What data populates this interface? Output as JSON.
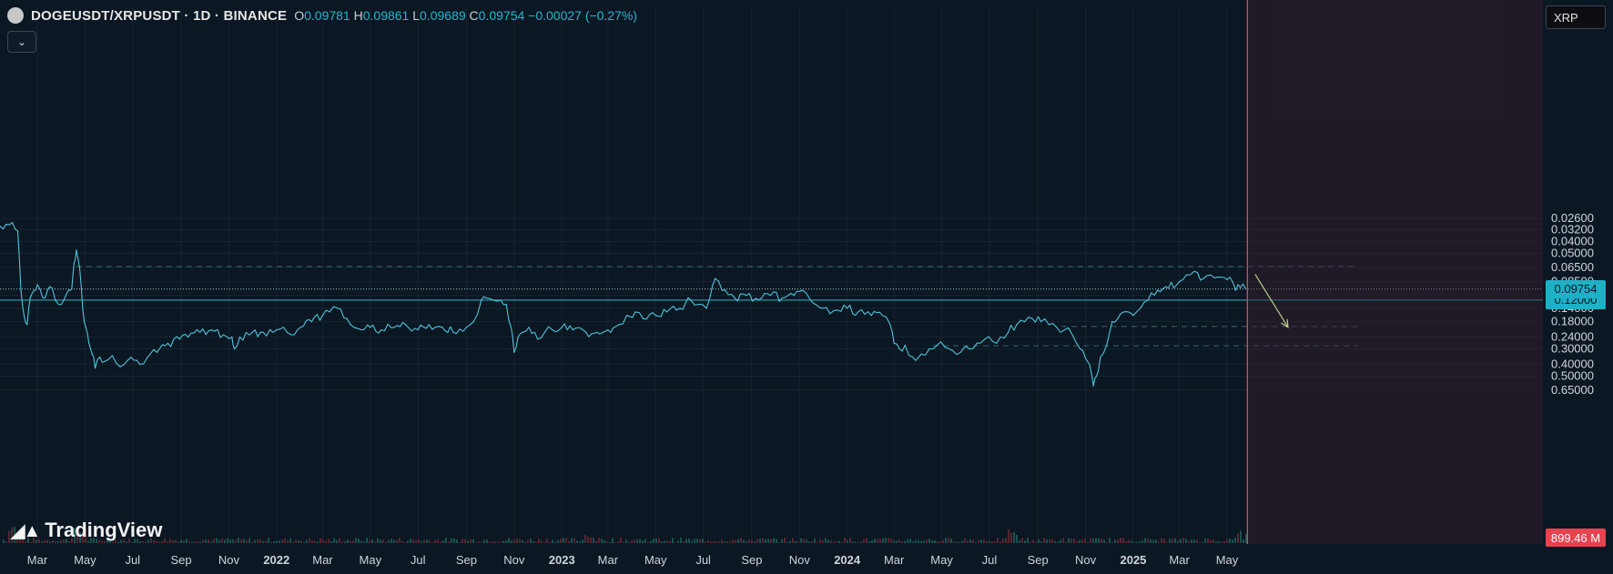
{
  "header": {
    "symbol": "DOGEUSDT/XRPUSDT · 1D · BINANCE",
    "o_label": "O",
    "o_value": "0.09781",
    "h_label": "H",
    "h_value": "0.09861",
    "l_label": "L",
    "l_value": "0.09689",
    "c_label": "C",
    "c_value": "0.09754",
    "change": "−0.00027 (−0.27%)",
    "toggle_icon": "chevron-down-icon"
  },
  "axis_button": "XRP",
  "brand": "TradingView",
  "tags": {
    "level": "0.12000",
    "last": "0.09754",
    "volume": "899.46 M"
  },
  "colors": {
    "background": "#0b1722",
    "price_line": "#4fc3dc",
    "zone_fill": "#1a7f8e",
    "projection": "#b9cf8a",
    "cursor_line": "#e05061",
    "volume_tag": "#e8424f",
    "tag_fill": "#1fb0c7"
  },
  "chart_data": {
    "type": "line",
    "ylabel": "",
    "y_scale": "log",
    "ylim": [
      0.022,
      0.72
    ],
    "y_ticks": [
      {
        "value": 0.65,
        "label": "0.65000"
      },
      {
        "value": 0.5,
        "label": "0.50000"
      },
      {
        "value": 0.4,
        "label": "0.40000"
      },
      {
        "value": 0.3,
        "label": "0.30000"
      },
      {
        "value": 0.24,
        "label": "0.24000"
      },
      {
        "value": 0.18,
        "label": "0.18000"
      },
      {
        "value": 0.14,
        "label": "0.14000"
      },
      {
        "value": 0.11,
        "label": "0.11000"
      },
      {
        "value": 0.085,
        "label": "0.08500"
      },
      {
        "value": 0.065,
        "label": "0.06500"
      },
      {
        "value": 0.05,
        "label": "0.05000"
      },
      {
        "value": 0.04,
        "label": "0.04000"
      },
      {
        "value": 0.032,
        "label": "0.03200"
      },
      {
        "value": 0.026,
        "label": "0.02600"
      }
    ],
    "x_ticks": [
      {
        "date": "2021-03-01",
        "label": "Mar",
        "bold": false
      },
      {
        "date": "2021-05-01",
        "label": "May",
        "bold": false
      },
      {
        "date": "2021-07-01",
        "label": "Jul",
        "bold": false
      },
      {
        "date": "2021-09-01",
        "label": "Sep",
        "bold": false
      },
      {
        "date": "2021-11-01",
        "label": "Nov",
        "bold": false
      },
      {
        "date": "2022-01-01",
        "label": "2022",
        "bold": true
      },
      {
        "date": "2022-03-01",
        "label": "Mar",
        "bold": false
      },
      {
        "date": "2022-05-01",
        "label": "May",
        "bold": false
      },
      {
        "date": "2022-07-01",
        "label": "Jul",
        "bold": false
      },
      {
        "date": "2022-09-01",
        "label": "Sep",
        "bold": false
      },
      {
        "date": "2022-11-01",
        "label": "Nov",
        "bold": false
      },
      {
        "date": "2023-01-01",
        "label": "2023",
        "bold": true
      },
      {
        "date": "2023-03-01",
        "label": "Mar",
        "bold": false
      },
      {
        "date": "2023-05-01",
        "label": "May",
        "bold": false
      },
      {
        "date": "2023-07-01",
        "label": "Jul",
        "bold": false
      },
      {
        "date": "2023-09-01",
        "label": "Sep",
        "bold": false
      },
      {
        "date": "2023-11-01",
        "label": "Nov",
        "bold": false
      },
      {
        "date": "2024-01-01",
        "label": "2024",
        "bold": true
      },
      {
        "date": "2024-03-01",
        "label": "Mar",
        "bold": false
      },
      {
        "date": "2024-05-01",
        "label": "May",
        "bold": false
      },
      {
        "date": "2024-07-01",
        "label": "Jul",
        "bold": false
      },
      {
        "date": "2024-09-01",
        "label": "Sep",
        "bold": false
      },
      {
        "date": "2024-11-01",
        "label": "Nov",
        "bold": false
      },
      {
        "date": "2025-01-01",
        "label": "2025",
        "bold": true
      },
      {
        "date": "2025-03-01",
        "label": "Mar",
        "bold": false
      },
      {
        "date": "2025-05-01",
        "label": "May",
        "bold": false
      }
    ],
    "series": [
      {
        "points": [
          [
            "2021-01-05",
            0.034
          ],
          [
            "2021-01-20",
            0.029
          ],
          [
            "2021-01-28",
            0.028
          ],
          [
            "2021-02-04",
            0.033
          ],
          [
            "2021-02-08",
            0.1
          ],
          [
            "2021-02-12",
            0.16
          ],
          [
            "2021-02-16",
            0.19
          ],
          [
            "2021-02-20",
            0.115
          ],
          [
            "2021-02-25",
            0.1
          ],
          [
            "2021-03-01",
            0.09
          ],
          [
            "2021-03-08",
            0.115
          ],
          [
            "2021-03-14",
            0.1
          ],
          [
            "2021-03-20",
            0.096
          ],
          [
            "2021-03-28",
            0.13
          ],
          [
            "2021-04-04",
            0.12
          ],
          [
            "2021-04-10",
            0.1
          ],
          [
            "2021-04-14",
            0.098
          ],
          [
            "2021-04-17",
            0.06
          ],
          [
            "2021-04-20",
            0.047
          ],
          [
            "2021-04-24",
            0.065
          ],
          [
            "2021-04-28",
            0.14
          ],
          [
            "2021-05-02",
            0.2
          ],
          [
            "2021-05-06",
            0.27
          ],
          [
            "2021-05-10",
            0.33
          ],
          [
            "2021-05-14",
            0.43
          ],
          [
            "2021-05-20",
            0.35
          ],
          [
            "2021-05-26",
            0.38
          ],
          [
            "2021-06-05",
            0.34
          ],
          [
            "2021-06-15",
            0.42
          ],
          [
            "2021-06-25",
            0.37
          ],
          [
            "2021-07-10",
            0.4
          ],
          [
            "2021-07-20",
            0.35
          ],
          [
            "2021-08-01",
            0.32
          ],
          [
            "2021-08-15",
            0.27
          ],
          [
            "2021-08-30",
            0.25
          ],
          [
            "2021-09-10",
            0.24
          ],
          [
            "2021-09-25",
            0.22
          ],
          [
            "2021-10-10",
            0.21
          ],
          [
            "2021-10-25",
            0.23
          ],
          [
            "2021-11-05",
            0.24
          ],
          [
            "2021-11-08",
            0.3
          ],
          [
            "2021-11-15",
            0.24
          ],
          [
            "2021-12-01",
            0.22
          ],
          [
            "2021-12-15",
            0.22
          ],
          [
            "2022-01-01",
            0.21
          ],
          [
            "2022-01-10",
            0.2
          ],
          [
            "2022-01-20",
            0.23
          ],
          [
            "2022-02-01",
            0.2
          ],
          [
            "2022-02-15",
            0.18
          ],
          [
            "2022-03-01",
            0.16
          ],
          [
            "2022-03-10",
            0.15
          ],
          [
            "2022-03-20",
            0.14
          ],
          [
            "2022-04-01",
            0.17
          ],
          [
            "2022-04-10",
            0.2
          ],
          [
            "2022-04-20",
            0.21
          ],
          [
            "2022-05-01",
            0.2
          ],
          [
            "2022-05-15",
            0.21
          ],
          [
            "2022-06-01",
            0.2
          ],
          [
            "2022-06-15",
            0.19
          ],
          [
            "2022-07-01",
            0.21
          ],
          [
            "2022-07-15",
            0.19
          ],
          [
            "2022-08-01",
            0.2
          ],
          [
            "2022-08-15",
            0.22
          ],
          [
            "2022-09-01",
            0.2
          ],
          [
            "2022-09-10",
            0.18
          ],
          [
            "2022-09-20",
            0.12
          ],
          [
            "2022-09-26",
            0.115
          ],
          [
            "2022-10-05",
            0.12
          ],
          [
            "2022-10-15",
            0.12
          ],
          [
            "2022-10-22",
            0.13
          ],
          [
            "2022-10-28",
            0.2
          ],
          [
            "2022-11-01",
            0.32
          ],
          [
            "2022-11-06",
            0.24
          ],
          [
            "2022-11-12",
            0.22
          ],
          [
            "2022-11-20",
            0.2
          ],
          [
            "2022-12-01",
            0.25
          ],
          [
            "2022-12-10",
            0.22
          ],
          [
            "2022-12-20",
            0.21
          ],
          [
            "2023-01-01",
            0.2
          ],
          [
            "2023-01-15",
            0.21
          ],
          [
            "2023-02-01",
            0.22
          ],
          [
            "2023-02-15",
            0.22
          ],
          [
            "2023-03-01",
            0.21
          ],
          [
            "2023-03-15",
            0.19
          ],
          [
            "2023-03-25",
            0.16
          ],
          [
            "2023-04-05",
            0.15
          ],
          [
            "2023-04-15",
            0.17
          ],
          [
            "2023-05-01",
            0.16
          ],
          [
            "2023-05-15",
            0.15
          ],
          [
            "2023-06-01",
            0.14
          ],
          [
            "2023-06-15",
            0.12
          ],
          [
            "2023-06-25",
            0.13
          ],
          [
            "2023-07-05",
            0.14
          ],
          [
            "2023-07-13",
            0.09
          ],
          [
            "2023-07-16",
            0.08
          ],
          [
            "2023-07-25",
            0.1
          ],
          [
            "2023-08-10",
            0.115
          ],
          [
            "2023-08-25",
            0.11
          ],
          [
            "2023-09-10",
            0.12
          ],
          [
            "2023-09-25",
            0.11
          ],
          [
            "2023-10-10",
            0.115
          ],
          [
            "2023-10-25",
            0.11
          ],
          [
            "2023-11-05",
            0.1
          ],
          [
            "2023-11-15",
            0.12
          ],
          [
            "2023-12-01",
            0.14
          ],
          [
            "2023-12-10",
            0.155
          ],
          [
            "2023-12-20",
            0.145
          ],
          [
            "2024-01-01",
            0.14
          ],
          [
            "2024-01-15",
            0.15
          ],
          [
            "2024-02-01",
            0.16
          ],
          [
            "2024-02-15",
            0.16
          ],
          [
            "2024-02-25",
            0.19
          ],
          [
            "2024-03-01",
            0.27
          ],
          [
            "2024-03-08",
            0.3
          ],
          [
            "2024-03-15",
            0.28
          ],
          [
            "2024-03-25",
            0.35
          ],
          [
            "2024-04-05",
            0.33
          ],
          [
            "2024-04-15",
            0.3
          ],
          [
            "2024-04-25",
            0.28
          ],
          [
            "2024-05-05",
            0.29
          ],
          [
            "2024-05-15",
            0.31
          ],
          [
            "2024-05-25",
            0.32
          ],
          [
            "2024-06-05",
            0.3
          ],
          [
            "2024-06-15",
            0.27
          ],
          [
            "2024-06-25",
            0.25
          ],
          [
            "2024-07-05",
            0.26
          ],
          [
            "2024-07-15",
            0.24
          ],
          [
            "2024-07-25",
            0.22
          ],
          [
            "2024-08-05",
            0.19
          ],
          [
            "2024-08-15",
            0.18
          ],
          [
            "2024-08-25",
            0.17
          ],
          [
            "2024-09-05",
            0.18
          ],
          [
            "2024-09-15",
            0.19
          ],
          [
            "2024-09-25",
            0.2
          ],
          [
            "2024-10-05",
            0.21
          ],
          [
            "2024-10-15",
            0.23
          ],
          [
            "2024-10-25",
            0.3
          ],
          [
            "2024-11-01",
            0.36
          ],
          [
            "2024-11-06",
            0.4
          ],
          [
            "2024-11-11",
            0.6
          ],
          [
            "2024-11-15",
            0.5
          ],
          [
            "2024-11-20",
            0.35
          ],
          [
            "2024-11-28",
            0.28
          ],
          [
            "2024-12-05",
            0.18
          ],
          [
            "2024-12-12",
            0.17
          ],
          [
            "2024-12-20",
            0.15
          ],
          [
            "2025-01-01",
            0.16
          ],
          [
            "2025-01-10",
            0.14
          ],
          [
            "2025-01-20",
            0.12
          ],
          [
            "2025-02-01",
            0.1
          ],
          [
            "2025-02-15",
            0.096
          ],
          [
            "2025-03-01",
            0.085
          ],
          [
            "2025-03-10",
            0.075
          ],
          [
            "2025-03-20",
            0.07
          ],
          [
            "2025-04-01",
            0.08
          ],
          [
            "2025-04-10",
            0.075
          ],
          [
            "2025-04-20",
            0.078
          ],
          [
            "2025-05-01",
            0.082
          ],
          [
            "2025-05-08",
            0.085
          ],
          [
            "2025-05-12",
            0.1
          ],
          [
            "2025-05-18",
            0.095
          ],
          [
            "2025-05-25",
            0.0975
          ]
        ]
      }
    ],
    "zones": [
      {
        "from": "2021-04-20",
        "to": "2025-10-15",
        "low": 0.047,
        "high": 0.089,
        "mid": 0.064
      },
      {
        "from": "2024-04-20",
        "to": "2025-10-15",
        "low": 0.245,
        "high": 0.33,
        "mid": 0.283
      },
      {
        "from": "2024-10-01",
        "to": "2025-10-15",
        "low": 0.175,
        "high": 0.22,
        "mid": 0.197
      }
    ],
    "levels": [
      0.12
    ],
    "last_price": 0.09754,
    "projection": {
      "from": [
        "2025-06-06",
        0.074
      ],
      "to": [
        "2025-07-18",
        0.2
      ]
    },
    "cursor_date": "2025-05-27",
    "grid": true,
    "legend": "none"
  }
}
